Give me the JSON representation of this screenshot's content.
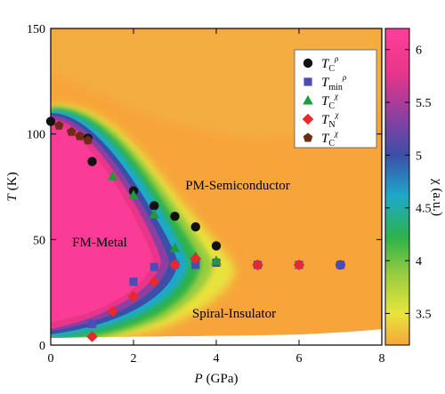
{
  "chart_data": {
    "type": "heatmap",
    "xlabel": {
      "var": "P",
      "unit": "(GPa)"
    },
    "ylabel": {
      "var": "T",
      "unit": "(K)"
    },
    "xlim": [
      0,
      8
    ],
    "ylim": [
      0,
      150
    ],
    "x_ticks": [
      "0",
      "2",
      "4",
      "6",
      "8"
    ],
    "y_ticks": [
      "0",
      "50",
      "100",
      "150"
    ],
    "grid": false,
    "colorbar": {
      "label": "χ (a.u.)",
      "range": [
        3.2,
        6.2
      ],
      "ticks": [
        "3.5",
        "4",
        "4.5",
        "5",
        "5.5",
        "6"
      ],
      "colors": [
        "#f7a53a",
        "#e6e53c",
        "#9acd3f",
        "#2eb24a",
        "#1ea9c9",
        "#3b4fa8",
        "#8b3fa0",
        "#e8358a",
        "#ff3f9a"
      ]
    },
    "regions": [
      "FM-Metal",
      "PM-Semiconductor",
      "Spiral-Insulator"
    ],
    "legend_placement": "top-right",
    "series": [
      {
        "label": "T",
        "sub": "C",
        "sup": "ρ",
        "marker": "circle",
        "color": "#111111",
        "points": [
          [
            0,
            106
          ],
          [
            0.9,
            98
          ],
          [
            1,
            87
          ],
          [
            2,
            73
          ],
          [
            2.5,
            66
          ],
          [
            3,
            61
          ],
          [
            3.5,
            56
          ],
          [
            4,
            47
          ],
          [
            5,
            38
          ],
          [
            7,
            38
          ]
        ]
      },
      {
        "label": "T",
        "sub": "min",
        "sup": "ρ",
        "marker": "square",
        "color": "#4a4db5",
        "points": [
          [
            1,
            10
          ],
          [
            2,
            30
          ],
          [
            2.5,
            37
          ],
          [
            3,
            38
          ],
          [
            3.5,
            38
          ],
          [
            4,
            39
          ],
          [
            5,
            38
          ],
          [
            6,
            38
          ],
          [
            7,
            38
          ]
        ]
      },
      {
        "label": "T",
        "sub": "C",
        "sup": "χ",
        "marker": "triangle",
        "color": "#1f9b3a",
        "points": [
          [
            1.5,
            80
          ],
          [
            2,
            71
          ],
          [
            2.5,
            62
          ],
          [
            3,
            46
          ],
          [
            3.5,
            42
          ],
          [
            4,
            40
          ]
        ]
      },
      {
        "label": "T",
        "sub": "N",
        "sup": "χ",
        "marker": "diamond",
        "color": "#e8282d",
        "points": [
          [
            1,
            4
          ],
          [
            1.5,
            16
          ],
          [
            2,
            23
          ],
          [
            2.5,
            30
          ],
          [
            3,
            38
          ],
          [
            3.5,
            41
          ],
          [
            5,
            38
          ],
          [
            6,
            38
          ]
        ]
      },
      {
        "label": "T",
        "sub": "C",
        "sup": "χ",
        "marker": "pentagon",
        "color": "#6e2b15",
        "points": [
          [
            0.2,
            104
          ],
          [
            0.5,
            101
          ],
          [
            0.7,
            99
          ],
          [
            0.9,
            97
          ]
        ]
      }
    ]
  }
}
